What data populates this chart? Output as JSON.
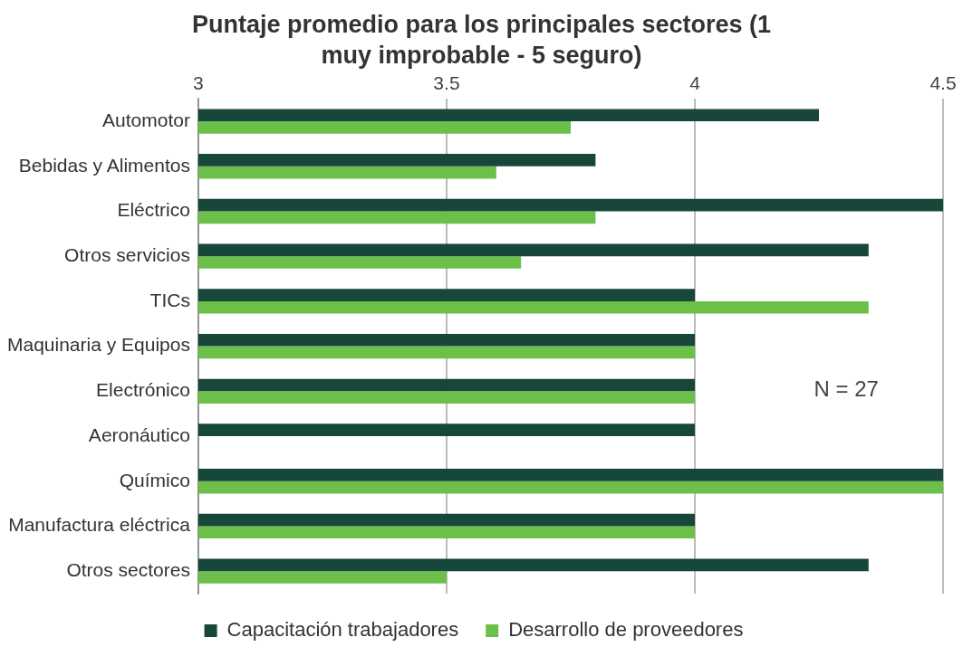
{
  "chart_data": {
    "type": "bar",
    "orientation": "horizontal",
    "title": "Puntaje promedio para los principales sectores (1 muy improbable - 5 seguro)",
    "categories": [
      "Automotor",
      "Bebidas y Alimentos",
      "Eléctrico",
      "Otros servicios",
      "TICs",
      "Maquinaria y Equipos",
      "Electrónico",
      "Aeronáutico",
      "Químico",
      "Manufactura eléctrica",
      "Otros sectores"
    ],
    "series": [
      {
        "name": "Capacitación trabajadores",
        "color": "#17473a",
        "values": [
          4.25,
          3.8,
          4.5,
          4.35,
          4,
          4,
          4,
          4,
          4.5,
          4,
          4.35
        ]
      },
      {
        "name": "Desarrollo de proveedores",
        "color": "#6cc04a",
        "values": [
          3.75,
          3.6,
          3.8,
          3.65,
          4.35,
          4,
          4,
          null,
          4.5,
          4,
          3.5
        ]
      }
    ],
    "xlim": [
      3,
      4.5
    ],
    "xticks": [
      3,
      3.5,
      4,
      4.5
    ],
    "grid": "x",
    "legend": "bottom",
    "annotations": [
      "N = 27"
    ]
  }
}
